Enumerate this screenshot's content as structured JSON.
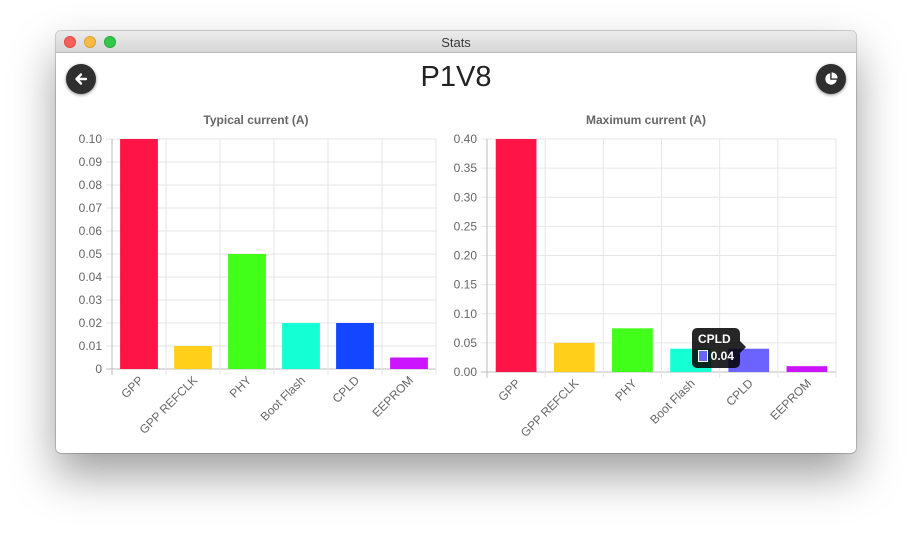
{
  "window": {
    "title": "Stats"
  },
  "header": {
    "title": "P1V8",
    "back_icon": "arrow-left-icon",
    "chart_toggle_icon": "pie-chart-icon"
  },
  "chart_data": [
    {
      "type": "bar",
      "title": "Typical current (A)",
      "categories": [
        "GPP",
        "GPP REFCLK",
        "PHY",
        "Boot Flash",
        "CPLD",
        "EEPROM"
      ],
      "values": [
        0.1,
        0.01,
        0.05,
        0.02,
        0.02,
        0.005
      ],
      "colors": [
        "#ff1447",
        "#ffcf1a",
        "#42ff1a",
        "#14ffd3",
        "#1446ff",
        "#cc14ff"
      ],
      "ylim": [
        0,
        0.1
      ],
      "yticks": [
        "0",
        "0.01",
        "0.02",
        "0.03",
        "0.04",
        "0.05",
        "0.06",
        "0.07",
        "0.08",
        "0.09",
        "0.10"
      ],
      "grid": true,
      "legend": "none"
    },
    {
      "type": "bar",
      "title": "Maximum current (A)",
      "categories": [
        "GPP",
        "GPP REFCLK",
        "PHY",
        "Boot Flash",
        "CPLD",
        "EEPROM"
      ],
      "values": [
        0.4,
        0.05,
        0.075,
        0.04,
        0.04,
        0.01
      ],
      "colors": [
        "#ff1447",
        "#ffcf1a",
        "#42ff1a",
        "#14ffd3",
        "#6c63ff",
        "#cc14ff"
      ],
      "ylim": [
        0,
        0.4
      ],
      "yticks": [
        "0.00",
        "0.05",
        "0.10",
        "0.15",
        "0.20",
        "0.25",
        "0.30",
        "0.35",
        "0.40"
      ],
      "grid": true,
      "legend": "none"
    }
  ],
  "tooltip": {
    "title": "CPLD",
    "value": "0.04",
    "swatch_color": "#6c63ff"
  }
}
